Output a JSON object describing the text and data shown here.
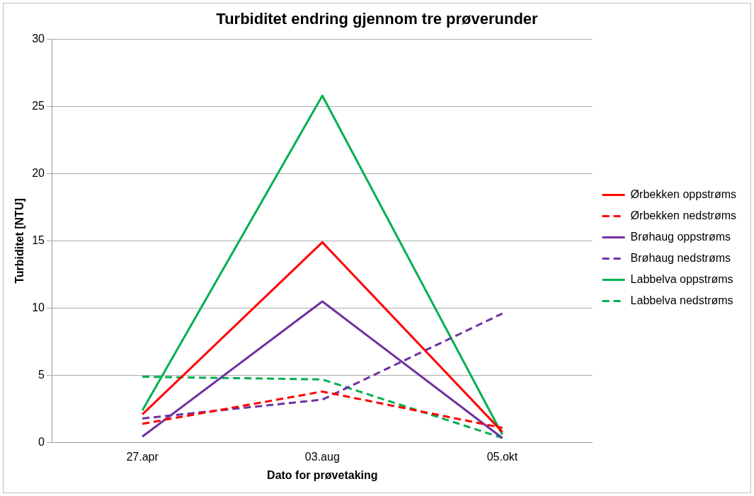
{
  "chart_data": {
    "type": "line",
    "title": "Turbiditet endring gjennom tre prøverunder",
    "xlabel": "Dato for prøvetaking",
    "ylabel": "Turbiditet [NTU]",
    "categories": [
      "27.apr",
      "03.aug",
      "05.okt"
    ],
    "series": [
      {
        "name": "Ørbekken oppstrøms",
        "color": "#ff0000",
        "values": [
          2.1,
          14.9,
          0.8
        ]
      },
      {
        "name": "Ørbekken nedstrøms",
        "color": "#ff0000",
        "values": [
          1.4,
          3.8,
          1.1
        ],
        "line_style": "dashed"
      },
      {
        "name": "Brøhaug oppstrøms",
        "color": "#7030a0",
        "values": [
          0.45,
          10.5,
          0.35
        ]
      },
      {
        "name": "Brøhaug nedstrøms",
        "color": "#7030a0",
        "values": [
          1.8,
          3.2,
          9.6
        ],
        "line_style": "dashed"
      },
      {
        "name": "Labbelva oppstrøms",
        "color": "#00b050",
        "values": [
          2.4,
          25.8,
          0.6
        ]
      },
      {
        "name": "Labbelva nedstrøms",
        "color": "#00b050",
        "values": [
          4.9,
          4.7,
          0.35
        ],
        "line_style": "dashed"
      }
    ],
    "ylim": [
      0,
      30
    ],
    "yticks": [
      0,
      5,
      10,
      15,
      20,
      25,
      30
    ],
    "grid": "y",
    "legend": "right",
    "marker": "none",
    "line_style": "solid"
  }
}
